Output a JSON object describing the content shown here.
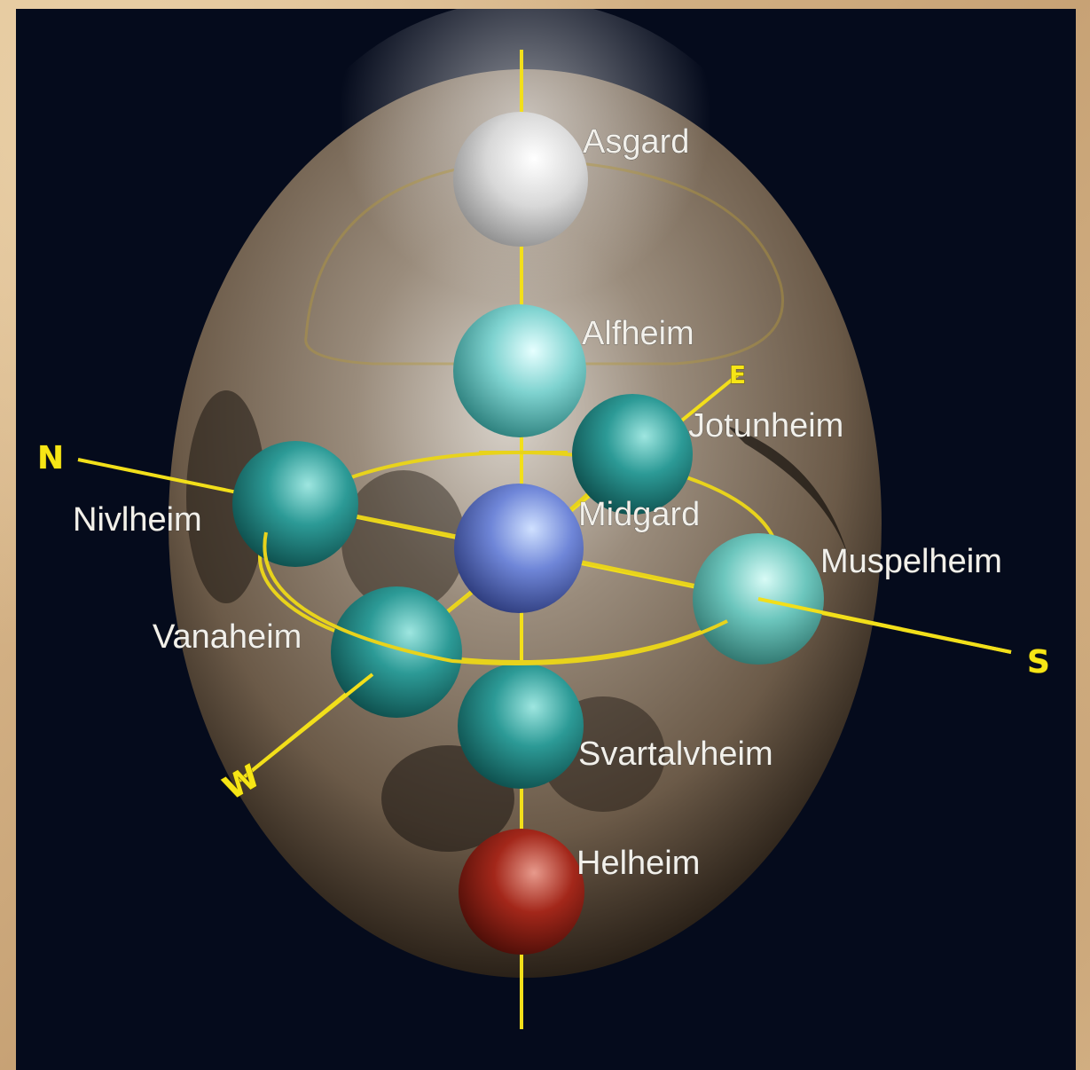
{
  "realms": {
    "asgard": "Asgard",
    "alfheim": "Alfheim",
    "jotunheim": "Jotunheim",
    "nivlheim": "Nivlheim",
    "midgard": "Midgard",
    "muspelheim": "Muspelheim",
    "vanaheim": "Vanaheim",
    "svartalvheim": "Svartalvheim",
    "helheim": "Helheim"
  },
  "directions": {
    "north": "N",
    "east": "E",
    "south": "S",
    "west": "W"
  },
  "colors": {
    "background": "#050b1c",
    "frame": "#d8b98f",
    "axis": "#f2df1a",
    "egg": "#8a7560",
    "asgard": "#e8e8e8",
    "alfheim": "#7fd3d0",
    "teal_realm": "#2c9a96",
    "midgard": "#6f86d8",
    "muspelheim": "#6cc6bd",
    "helheim": "#a3271a",
    "label": "#f2f0ea",
    "direction": "#f6e516"
  }
}
